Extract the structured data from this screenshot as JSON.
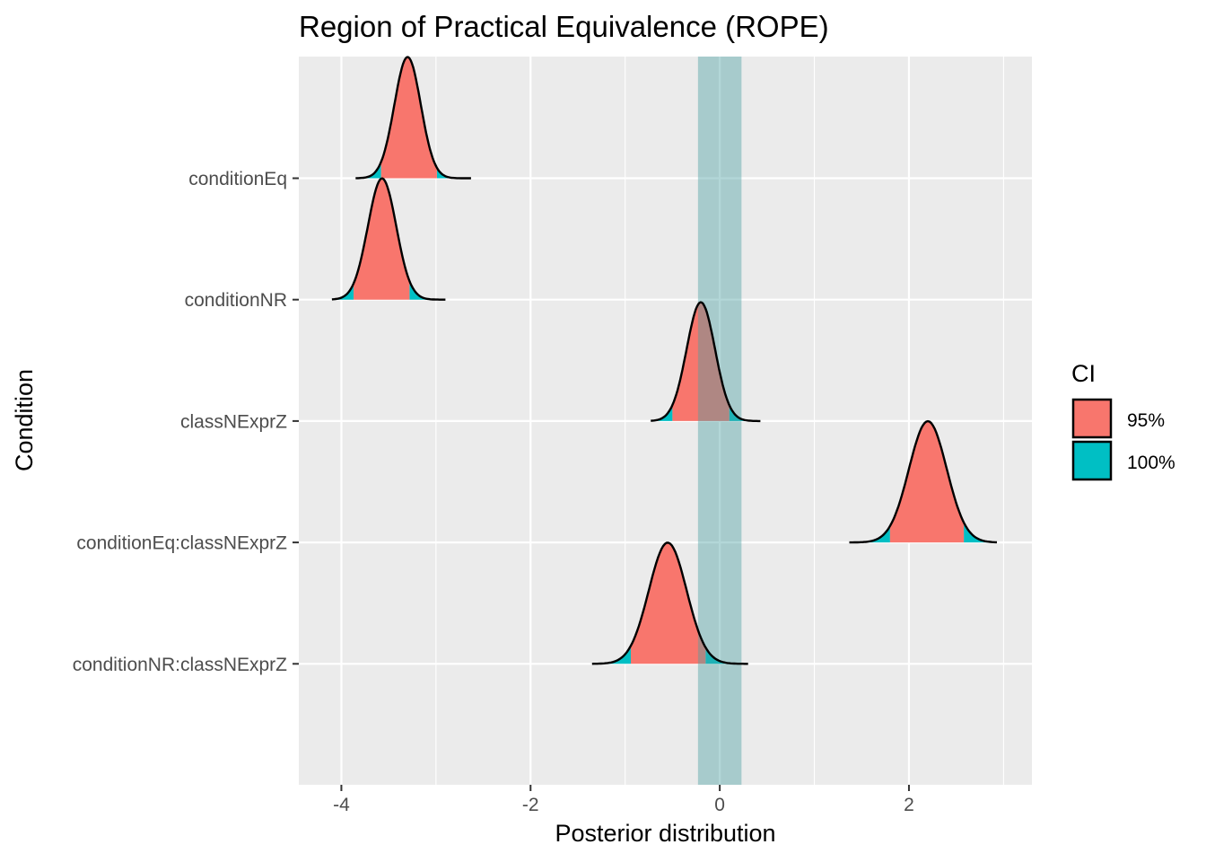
{
  "chart_data": {
    "type": "ridgeline-density",
    "title": "Region of Practical Equivalence (ROPE)",
    "xlabel": "Posterior distribution",
    "ylabel": "Condition",
    "xlim": [
      -4.45,
      3.3
    ],
    "x_ticks": [
      -4,
      -2,
      0,
      2
    ],
    "x_tick_labels": [
      "-4",
      "-2",
      "0",
      "2"
    ],
    "grid": true,
    "rope": {
      "low": -0.23,
      "high": 0.23,
      "color": "#4a9fa3"
    },
    "legend": {
      "title": "CI",
      "position": "right",
      "entries": [
        {
          "label": "95%",
          "color": "#f8766d"
        },
        {
          "label": "100%",
          "color": "#00bfc4"
        }
      ]
    },
    "categories": [
      "conditionEq",
      "conditionNR",
      "classNExprZ",
      "conditionEq:classNExprZ",
      "conditionNR:classNExprZ"
    ],
    "series": [
      {
        "name": "conditionEq",
        "mean": -3.3,
        "sd": 0.14,
        "min": -3.85,
        "max": -2.63,
        "ci95": [
          -3.58,
          -2.99
        ],
        "peak": 1.0
      },
      {
        "name": "conditionNR",
        "mean": -3.57,
        "sd": 0.15,
        "min": -4.1,
        "max": -2.9,
        "ci95": [
          -3.87,
          -3.28
        ],
        "peak": 1.0
      },
      {
        "name": "classNExprZ",
        "mean": -0.2,
        "sd": 0.15,
        "min": -0.73,
        "max": 0.43,
        "ci95": [
          -0.5,
          0.1
        ],
        "peak": 0.98
      },
      {
        "name": "conditionEq:classNExprZ",
        "mean": 2.2,
        "sd": 0.2,
        "min": 1.37,
        "max": 2.93,
        "ci95": [
          1.8,
          2.58
        ],
        "peak": 1.0
      },
      {
        "name": "conditionNR:classNExprZ",
        "mean": -0.55,
        "sd": 0.2,
        "min": -1.35,
        "max": 0.3,
        "ci95": [
          -0.94,
          -0.15
        ],
        "peak": 1.0
      }
    ]
  }
}
